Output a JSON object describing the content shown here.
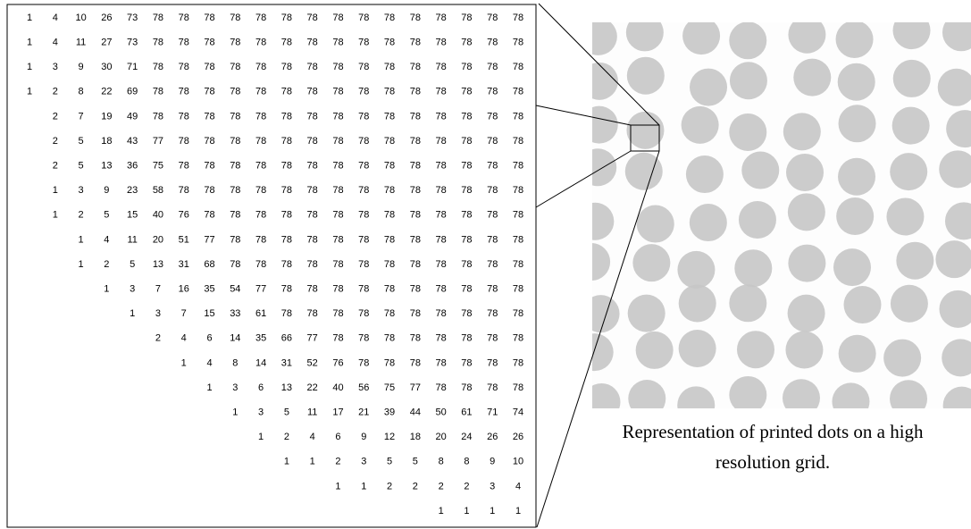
{
  "matrix": {
    "rows": [
      [
        1,
        4,
        10,
        26,
        73,
        78,
        78,
        78,
        78,
        78,
        78,
        78,
        78,
        78,
        78,
        78,
        78,
        78,
        78,
        78
      ],
      [
        1,
        4,
        11,
        27,
        73,
        78,
        78,
        78,
        78,
        78,
        78,
        78,
        78,
        78,
        78,
        78,
        78,
        78,
        78,
        78
      ],
      [
        1,
        3,
        9,
        30,
        71,
        78,
        78,
        78,
        78,
        78,
        78,
        78,
        78,
        78,
        78,
        78,
        78,
        78,
        78,
        78
      ],
      [
        1,
        2,
        8,
        22,
        69,
        78,
        78,
        78,
        78,
        78,
        78,
        78,
        78,
        78,
        78,
        78,
        78,
        78,
        78,
        78
      ],
      [
        null,
        2,
        7,
        19,
        49,
        78,
        78,
        78,
        78,
        78,
        78,
        78,
        78,
        78,
        78,
        78,
        78,
        78,
        78,
        78
      ],
      [
        null,
        2,
        5,
        18,
        43,
        77,
        78,
        78,
        78,
        78,
        78,
        78,
        78,
        78,
        78,
        78,
        78,
        78,
        78,
        78
      ],
      [
        null,
        2,
        5,
        13,
        36,
        75,
        78,
        78,
        78,
        78,
        78,
        78,
        78,
        78,
        78,
        78,
        78,
        78,
        78,
        78
      ],
      [
        null,
        1,
        3,
        9,
        23,
        58,
        78,
        78,
        78,
        78,
        78,
        78,
        78,
        78,
        78,
        78,
        78,
        78,
        78,
        78
      ],
      [
        null,
        1,
        2,
        5,
        15,
        40,
        76,
        78,
        78,
        78,
        78,
        78,
        78,
        78,
        78,
        78,
        78,
        78,
        78,
        78
      ],
      [
        null,
        null,
        1,
        4,
        11,
        20,
        51,
        77,
        78,
        78,
        78,
        78,
        78,
        78,
        78,
        78,
        78,
        78,
        78,
        78
      ],
      [
        null,
        null,
        1,
        2,
        5,
        13,
        31,
        68,
        78,
        78,
        78,
        78,
        78,
        78,
        78,
        78,
        78,
        78,
        78,
        78
      ],
      [
        null,
        null,
        null,
        1,
        3,
        7,
        16,
        35,
        54,
        77,
        78,
        78,
        78,
        78,
        78,
        78,
        78,
        78,
        78,
        78
      ],
      [
        null,
        null,
        null,
        null,
        1,
        3,
        7,
        15,
        33,
        61,
        78,
        78,
        78,
        78,
        78,
        78,
        78,
        78,
        78,
        78
      ],
      [
        null,
        null,
        null,
        null,
        null,
        2,
        4,
        6,
        14,
        35,
        66,
        77,
        78,
        78,
        78,
        78,
        78,
        78,
        78,
        78
      ],
      [
        null,
        null,
        null,
        null,
        null,
        null,
        1,
        4,
        8,
        14,
        31,
        52,
        76,
        78,
        78,
        78,
        78,
        78,
        78,
        78
      ],
      [
        null,
        null,
        null,
        null,
        null,
        null,
        null,
        1,
        3,
        6,
        13,
        22,
        40,
        56,
        75,
        77,
        78,
        78,
        78,
        78
      ],
      [
        null,
        null,
        null,
        null,
        null,
        null,
        null,
        null,
        1,
        3,
        5,
        11,
        17,
        21,
        39,
        44,
        50,
        61,
        71,
        74
      ],
      [
        null,
        null,
        null,
        null,
        null,
        null,
        null,
        null,
        null,
        1,
        2,
        4,
        6,
        9,
        12,
        18,
        20,
        24,
        26,
        26
      ],
      [
        null,
        null,
        null,
        null,
        null,
        null,
        null,
        null,
        null,
        null,
        1,
        1,
        2,
        3,
        5,
        5,
        8,
        8,
        9,
        10
      ],
      [
        null,
        null,
        null,
        null,
        null,
        null,
        null,
        null,
        null,
        null,
        null,
        null,
        1,
        1,
        2,
        2,
        2,
        2,
        3,
        4
      ],
      [
        null,
        null,
        null,
        null,
        null,
        null,
        null,
        null,
        null,
        null,
        null,
        null,
        null,
        null,
        null,
        null,
        1,
        1,
        1,
        1
      ]
    ]
  },
  "caption": "Representation of printed dots on a high resolution grid."
}
